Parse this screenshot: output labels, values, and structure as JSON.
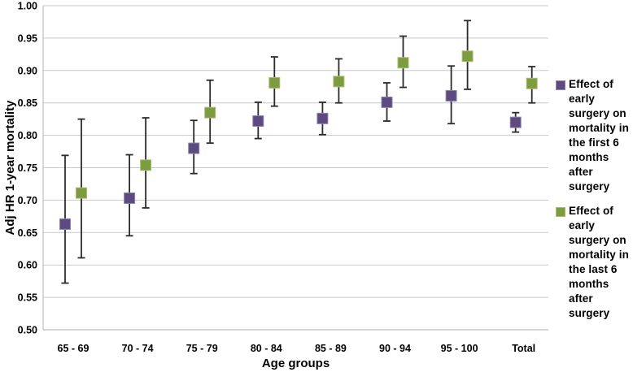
{
  "figure": {
    "background": "#ffffff"
  },
  "chart_data": {
    "type": "scatter",
    "marker": "square",
    "error_bars": true,
    "title": "",
    "xlabel": "Age groups",
    "ylabel": "Adj HR 1-year mortality",
    "ylim": [
      0.5,
      1.0
    ],
    "ytick_step": 0.05,
    "ytick_labels": [
      "0.50",
      "0.55",
      "0.60",
      "0.65",
      "0.70",
      "0.75",
      "0.80",
      "0.85",
      "0.90",
      "0.95",
      "1.00"
    ],
    "categories": [
      "65 - 69",
      "70 - 74",
      "75 - 79",
      "80 - 84",
      "85 - 89",
      "90 - 94",
      "95 - 100",
      "Total"
    ],
    "grid": true,
    "legend_position": "right",
    "series": [
      {
        "name": "Effect of early surgery on mortality in the first 6 months after surgery",
        "legend_lines": [
          "Effect of",
          "early",
          "surgery on",
          "mortality in",
          "the first 6",
          "months",
          "after surgery"
        ],
        "color": "#5c4a80",
        "marker_border": "#9184b1",
        "values": [
          0.663,
          0.703,
          0.78,
          0.822,
          0.826,
          0.851,
          0.861,
          0.82
        ],
        "ci_low": [
          0.572,
          0.645,
          0.741,
          0.795,
          0.801,
          0.822,
          0.818,
          0.805
        ],
        "ci_high": [
          0.769,
          0.77,
          0.823,
          0.851,
          0.851,
          0.881,
          0.907,
          0.835
        ]
      },
      {
        "name": "Effect of early surgery on mortality in the last 6 months after surgery",
        "legend_lines": [
          "Effect of",
          "early",
          "surgery on",
          "mortality in",
          "the last 6",
          "months",
          "after surgery"
        ],
        "color": "#7d9c3f",
        "marker_border": "#a9bd72",
        "values": [
          0.711,
          0.754,
          0.835,
          0.881,
          0.883,
          0.912,
          0.922,
          0.88
        ],
        "ci_low": [
          0.611,
          0.688,
          0.788,
          0.845,
          0.85,
          0.874,
          0.871,
          0.85
        ],
        "ci_high": [
          0.825,
          0.827,
          0.885,
          0.921,
          0.918,
          0.953,
          0.977,
          0.906
        ]
      }
    ],
    "style": {
      "gridline_color": "#c9c9c9",
      "axis_color": "#bdbdbd",
      "errorbar_color": "#2b2b2b",
      "text_color": "#000000"
    }
  }
}
